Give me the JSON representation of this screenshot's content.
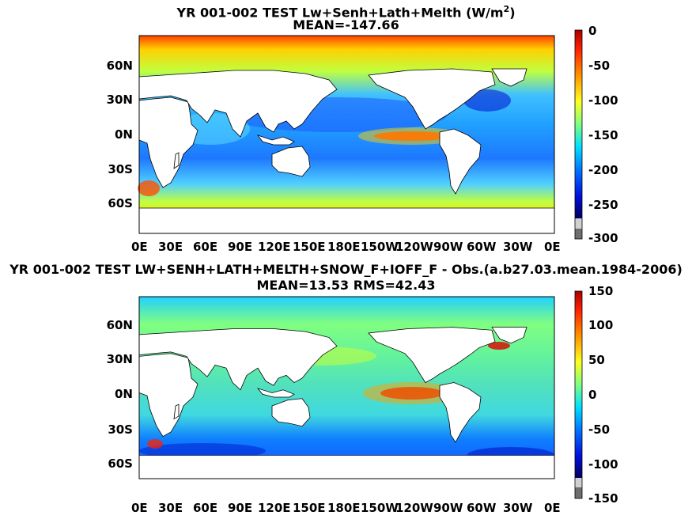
{
  "panels": [
    {
      "title_main": "YR 001-002 TEST Lw+Senh+Lath+Melth (W/m",
      "title_sup": "2",
      "title_close": ")",
      "subtitle": "MEAN=-147.66",
      "lat_ticks": [
        "60N",
        "30N",
        "0N",
        "30S",
        "60S"
      ],
      "lon_ticks": [
        "0E",
        "30E",
        "60E",
        "90E",
        "120E",
        "150E",
        "180E",
        "150W",
        "120W",
        "90W",
        "60W",
        "30W",
        "0E"
      ],
      "colorbar_ticks": [
        "0",
        "-50",
        "-100",
        "-150",
        "-200",
        "-250",
        "-300"
      ],
      "colorbar_range": [
        -300,
        0
      ]
    },
    {
      "title_main": "YR 001-002 TEST LW+SENH+LATH+MELTH+SNOW_F+IOFF_F - Obs.(a.b27.03.mean.1984-2006)",
      "subtitle": "MEAN=13.53 RMS=42.43",
      "lat_ticks": [
        "60N",
        "30N",
        "0N",
        "30S",
        "60S"
      ],
      "lon_ticks": [
        "0E",
        "30E",
        "60E",
        "90E",
        "120E",
        "150E",
        "180E",
        "150W",
        "120W",
        "90W",
        "60W",
        "30W",
        "0E"
      ],
      "colorbar_ticks": [
        "150",
        "100",
        "50",
        "0",
        "-50",
        "-100",
        "-150"
      ],
      "colorbar_range": [
        -150,
        150
      ]
    }
  ],
  "colors": {
    "land": "#ffffff",
    "sea_ice": "#6e6e6e",
    "jet_scale": [
      "#7f0000",
      "#ff0000",
      "#ff8000",
      "#ffff00",
      "#80ff80",
      "#00ffff",
      "#0080ff",
      "#0000ff",
      "#00007f"
    ]
  }
}
